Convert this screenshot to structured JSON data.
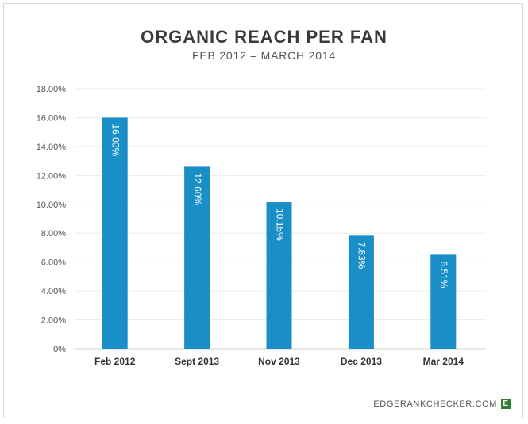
{
  "chart_data": {
    "type": "bar",
    "title": "ORGANIC REACH PER FAN",
    "subtitle": "FEB 2012 – MARCH 2014",
    "categories": [
      "Feb 2012",
      "Sept 2013",
      "Nov 2013",
      "Dec 2013",
      "Mar 2014"
    ],
    "values": [
      16.0,
      12.6,
      10.15,
      7.83,
      6.51
    ],
    "data_labels": [
      "16.00%",
      "12.60%",
      "10.15%",
      "7.83%",
      "6.51%"
    ],
    "ylim": [
      0,
      18
    ],
    "yticks": [
      0,
      2,
      4,
      6,
      8,
      10,
      12,
      14,
      16,
      18
    ],
    "ytick_labels": [
      "0%",
      "2.00%",
      "4.00%",
      "6.00%",
      "8.00%",
      "10.00%",
      "12.00%",
      "14.00%",
      "16.00%",
      "18.00%"
    ],
    "xlabel": "",
    "ylabel": "",
    "grid": true,
    "bar_color": "#1a8fc7"
  },
  "footer": {
    "source": "EDGERANKCHECKER.COM",
    "logo_letter": "E",
    "logo_color": "#2e7d32"
  }
}
